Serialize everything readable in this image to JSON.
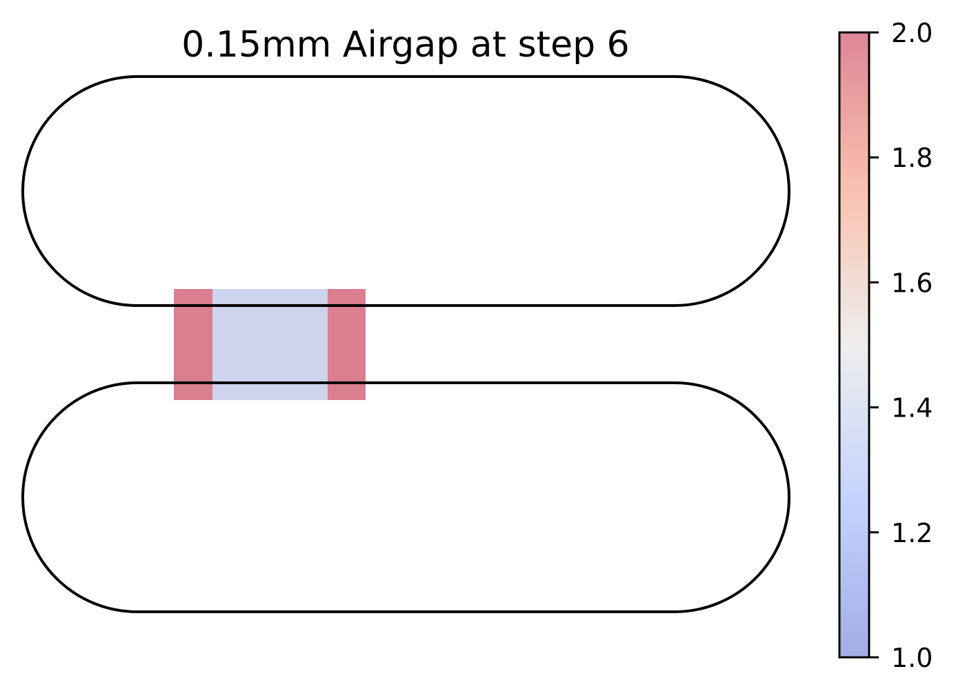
{
  "title": "0.15mm Airgap at step 6",
  "colorbar": {
    "colormap": "coolwarm",
    "alpha": 0.5,
    "min": 1.0,
    "max": 2.0,
    "ticks": [
      "1.0",
      "1.2",
      "1.4",
      "1.6",
      "1.8",
      "2.0"
    ],
    "tick_values": [
      1.0,
      1.2,
      1.4,
      1.6,
      1.8,
      2.0
    ]
  },
  "regions": [
    {
      "name": "left-block",
      "value": 2.0
    },
    {
      "name": "center-block",
      "value": 1.45
    },
    {
      "name": "right-block",
      "value": 2.0
    }
  ],
  "colors": {
    "outline": "#000000",
    "high": "#d97f8f",
    "mid": "#cfd4ee"
  }
}
